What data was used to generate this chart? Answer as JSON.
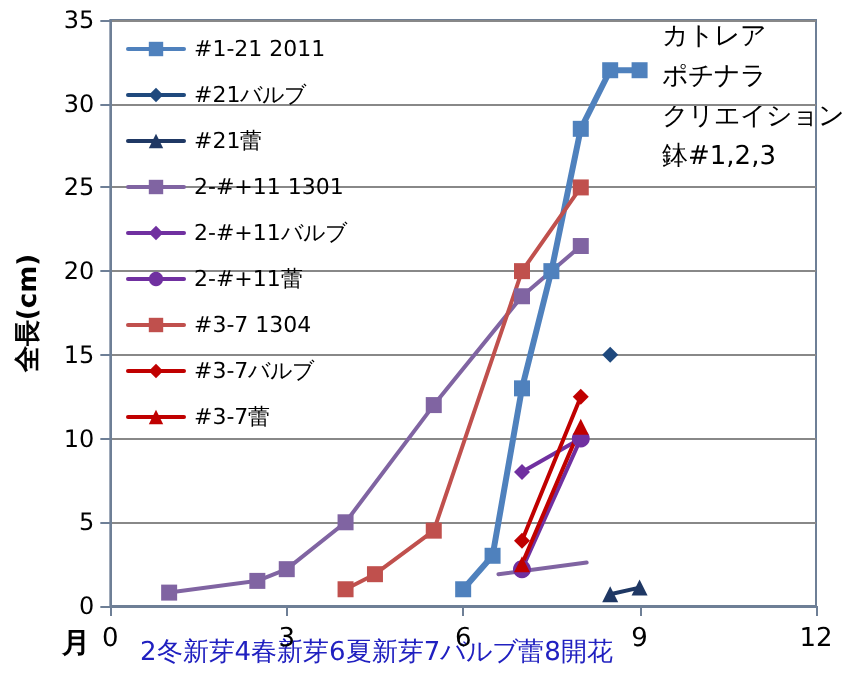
{
  "chart_data": {
    "type": "line",
    "xlabel": "月",
    "ylabel": "全長(cm)",
    "xlim": [
      0,
      12
    ],
    "xticks": [
      0,
      3,
      6,
      9,
      12
    ],
    "ylim": [
      0,
      35
    ],
    "yticks": [
      0,
      5,
      10,
      15,
      20,
      25,
      30,
      35
    ],
    "grid": "y",
    "legend": "top left",
    "annotations": [
      "カトレア",
      "ポチナラ",
      "クリエイション",
      "鉢#1,2,3",
      "2冬新芽4春新芽6夏新芽7バルブ蕾8開花"
    ],
    "series": [
      {
        "name": "#1-21 2011",
        "color": "#4f81bd",
        "marker": "square",
        "x": [
          6,
          6.5,
          7,
          7.5,
          8,
          8.5,
          9
        ],
        "values": [
          1,
          3,
          13,
          20,
          28.5,
          32,
          32
        ]
      },
      {
        "name": "#21バルブ",
        "color": "#1f497d",
        "marker": "diamond",
        "x": [
          8.5
        ],
        "values": [
          15
        ]
      },
      {
        "name": "#21蕾",
        "color": "#1f3864",
        "marker": "triangle",
        "x": [
          8.5,
          9
        ],
        "values": [
          0.7,
          1.1
        ]
      },
      {
        "name": "2-#+11 1301",
        "color": "#8064a2",
        "marker": "square",
        "x": [
          1,
          2.5,
          3,
          4,
          5.5,
          7,
          8
        ],
        "values": [
          0.8,
          1.5,
          2.2,
          5,
          12,
          18.5,
          21.5
        ]
      },
      {
        "name": "2-#+11バルブ",
        "color": "#7030a0",
        "marker": "diamond",
        "x": [
          7,
          8
        ],
        "values": [
          8,
          10
        ]
      },
      {
        "name": "2-#+11蕾",
        "color": "#7030a0",
        "marker": "circle",
        "x": [
          7,
          8
        ],
        "values": [
          2.2,
          10
        ]
      },
      {
        "name": "#3-7 1304",
        "color": "#c0504d",
        "marker": "square",
        "x": [
          4,
          4.5,
          5.5,
          7,
          8
        ],
        "values": [
          1,
          1.9,
          4.5,
          20,
          25
        ]
      },
      {
        "name": "#3-7バルブ",
        "color": "#c00000",
        "marker": "diamond",
        "x": [
          7,
          8
        ],
        "values": [
          3.9,
          12.5
        ]
      },
      {
        "name": "#3-7蕾",
        "color": "#c00000",
        "marker": "triangle",
        "x": [
          7,
          8
        ],
        "values": [
          2.5,
          10.7
        ]
      },
      {
        "color": "#8064a2",
        "marker": "none",
        "x": [
          6.6,
          8.1
        ],
        "values": [
          1.9,
          2.6
        ]
      }
    ]
  }
}
